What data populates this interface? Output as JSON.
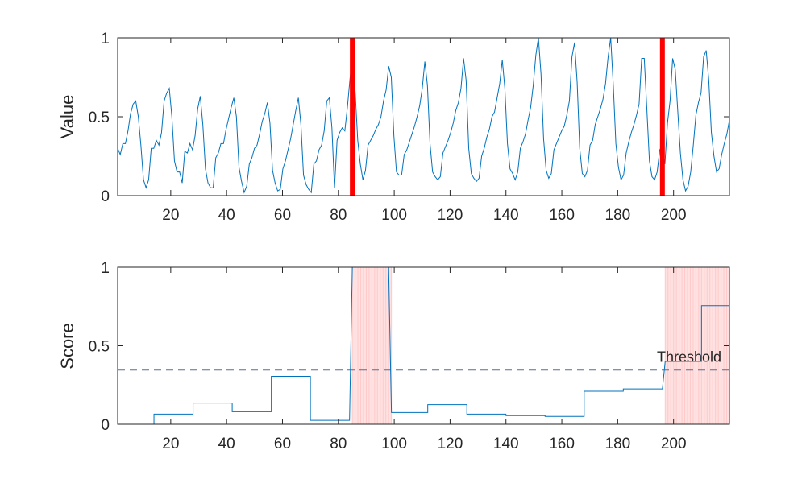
{
  "colors": {
    "line": "#0072BD",
    "change_marker": "#FF0000",
    "anomaly_fill": "#FFC9C9",
    "threshold_line": "#5A6E8C",
    "axis": "#262626"
  },
  "chart_data": [
    {
      "type": "line",
      "title": "",
      "xlabel": "",
      "ylabel": "Value",
      "xlim": [
        1,
        220
      ],
      "ylim": [
        0,
        1
      ],
      "xticks": [
        20,
        40,
        60,
        80,
        100,
        120,
        140,
        160,
        180,
        200
      ],
      "xtick_labels": [
        "20",
        "40",
        "60",
        "80",
        "100",
        "120",
        "140",
        "160",
        "180",
        "200"
      ],
      "yticks": [
        0,
        0.5,
        1
      ],
      "ytick_labels": [
        "0",
        "0.5",
        "1"
      ],
      "grid": false,
      "change_points": [
        85,
        196
      ],
      "series": [
        {
          "values": [
            0.3,
            0.26,
            0.33,
            0.33,
            0.41,
            0.52,
            0.58,
            0.6,
            0.5,
            0.32,
            0.1,
            0.05,
            0.1,
            0.3,
            0.3,
            0.35,
            0.32,
            0.4,
            0.6,
            0.65,
            0.68,
            0.5,
            0.22,
            0.15,
            0.15,
            0.08,
            0.28,
            0.27,
            0.33,
            0.29,
            0.38,
            0.55,
            0.63,
            0.45,
            0.17,
            0.08,
            0.05,
            0.05,
            0.24,
            0.27,
            0.33,
            0.33,
            0.42,
            0.49,
            0.56,
            0.62,
            0.5,
            0.18,
            0.09,
            0.02,
            0.06,
            0.2,
            0.24,
            0.3,
            0.32,
            0.39,
            0.47,
            0.52,
            0.59,
            0.46,
            0.16,
            0.08,
            0.03,
            0.04,
            0.17,
            0.22,
            0.29,
            0.36,
            0.45,
            0.54,
            0.62,
            0.45,
            0.13,
            0.07,
            0.04,
            0.02,
            0.2,
            0.22,
            0.29,
            0.32,
            0.41,
            0.6,
            0.62,
            0.43,
            0.05,
            0.35,
            0.4,
            0.43,
            0.41,
            0.56,
            0.74,
            0.88,
            0.66,
            0.35,
            0.2,
            0.1,
            0.16,
            0.32,
            0.35,
            0.38,
            0.42,
            0.45,
            0.5,
            0.6,
            0.67,
            0.82,
            0.75,
            0.38,
            0.15,
            0.13,
            0.13,
            0.26,
            0.29,
            0.34,
            0.39,
            0.44,
            0.5,
            0.57,
            0.68,
            0.85,
            0.7,
            0.33,
            0.15,
            0.12,
            0.1,
            0.12,
            0.27,
            0.31,
            0.35,
            0.4,
            0.46,
            0.54,
            0.59,
            0.68,
            0.87,
            0.73,
            0.3,
            0.14,
            0.11,
            0.09,
            0.11,
            0.25,
            0.3,
            0.37,
            0.42,
            0.5,
            0.53,
            0.62,
            0.71,
            0.86,
            0.68,
            0.33,
            0.17,
            0.14,
            0.1,
            0.15,
            0.3,
            0.34,
            0.39,
            0.48,
            0.56,
            0.7,
            0.89,
            1.0,
            0.77,
            0.36,
            0.16,
            0.11,
            0.14,
            0.29,
            0.33,
            0.37,
            0.41,
            0.44,
            0.51,
            0.6,
            0.88,
            0.97,
            0.72,
            0.3,
            0.14,
            0.12,
            0.16,
            0.32,
            0.35,
            0.45,
            0.5,
            0.55,
            0.61,
            0.71,
            0.88,
            1.0,
            0.7,
            0.33,
            0.18,
            0.1,
            0.13,
            0.27,
            0.34,
            0.4,
            0.45,
            0.51,
            0.58,
            0.87,
            0.87,
            0.55,
            0.22,
            0.12,
            0.1,
            0.15,
            0.29,
            0.32,
            0.2,
            0.46,
            0.6,
            0.87,
            0.8,
            0.53,
            0.27,
            0.1,
            0.03,
            0.06,
            0.15,
            0.32,
            0.51,
            0.59,
            0.65,
            0.88,
            0.92,
            0.73,
            0.4,
            0.25,
            0.15,
            0.17,
            0.26,
            0.33,
            0.39,
            0.48
          ]
        }
      ]
    },
    {
      "type": "line",
      "title": "",
      "xlabel": "",
      "ylabel": "Score",
      "xlim": [
        1,
        220
      ],
      "ylim": [
        0,
        1
      ],
      "xticks": [
        20,
        40,
        60,
        80,
        100,
        120,
        140,
        160,
        180,
        200
      ],
      "xtick_labels": [
        "20",
        "40",
        "60",
        "80",
        "100",
        "120",
        "140",
        "160",
        "180",
        "200"
      ],
      "yticks": [
        0,
        0.5,
        1
      ],
      "ytick_labels": [
        "0",
        "0.5",
        "1"
      ],
      "grid": false,
      "threshold": {
        "value": 0.345,
        "label": "Threshold"
      },
      "anomaly_regions": [
        [
          85,
          99
        ],
        [
          197,
          220
        ]
      ],
      "series": [
        {
          "x": [
            1,
            14,
            14,
            28,
            28,
            42,
            42,
            56,
            56,
            70,
            70,
            84,
            85,
            98,
            99,
            112,
            112,
            126,
            126,
            140,
            140,
            154,
            154,
            168,
            168,
            182,
            182,
            196,
            197,
            210,
            210,
            220
          ],
          "y": [
            0.0,
            0.0,
            0.065,
            0.065,
            0.135,
            0.135,
            0.08,
            0.08,
            0.305,
            0.305,
            0.025,
            0.025,
            1.0,
            1.0,
            0.075,
            0.075,
            0.125,
            0.125,
            0.065,
            0.065,
            0.055,
            0.055,
            0.05,
            0.05,
            0.21,
            0.21,
            0.225,
            0.225,
            0.4,
            0.4,
            0.755,
            0.755
          ]
        }
      ]
    }
  ]
}
